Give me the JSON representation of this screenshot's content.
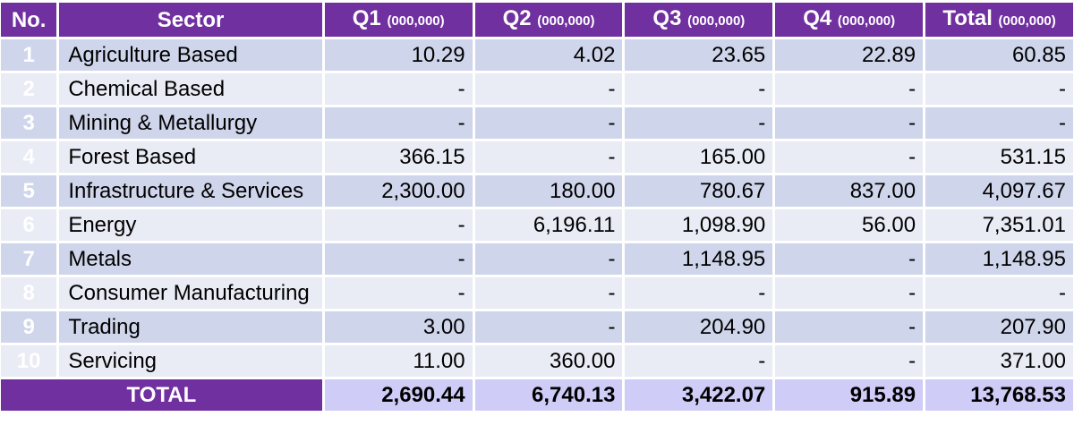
{
  "header": {
    "no": "No.",
    "sector": "Sector",
    "q1": "Q1",
    "q1_unit": "(000,000)",
    "q2": "Q2",
    "q2_unit": "(000,000)",
    "q3": "Q3",
    "q3_unit": "(000,000)",
    "q4": "Q4",
    "q4_unit": "(000,000)",
    "total": "Total",
    "total_unit": "(000,000)"
  },
  "rows": [
    {
      "no": "1",
      "sector": "Agriculture Based",
      "q1": "10.29",
      "q2": "4.02",
      "q3": "23.65",
      "q4": "22.89",
      "total": "60.85"
    },
    {
      "no": "2",
      "sector": "Chemical Based",
      "q1": "-",
      "q2": "-",
      "q3": "-",
      "q4": "-",
      "total": "-"
    },
    {
      "no": "3",
      "sector": "Mining & Metallurgy",
      "q1": "-",
      "q2": "-",
      "q3": "-",
      "q4": "-",
      "total": "-"
    },
    {
      "no": "4",
      "sector": "Forest Based",
      "q1": "366.15",
      "q2": "-",
      "q3": "165.00",
      "q4": "-",
      "total": "531.15"
    },
    {
      "no": "5",
      "sector": "Infrastructure & Services",
      "q1": "2,300.00",
      "q2": "180.00",
      "q3": "780.67",
      "q4": "837.00",
      "total": "4,097.67"
    },
    {
      "no": "6",
      "sector": "Energy",
      "q1": "-",
      "q2": "6,196.11",
      "q3": "1,098.90",
      "q4": "56.00",
      "total": "7,351.01"
    },
    {
      "no": "7",
      "sector": "Metals",
      "q1": "-",
      "q2": "-",
      "q3": "1,148.95",
      "q4": "-",
      "total": "1,148.95"
    },
    {
      "no": "8",
      "sector": "Consumer Manufacturing",
      "q1": "-",
      "q2": "-",
      "q3": "-",
      "q4": "-",
      "total": "-"
    },
    {
      "no": "9",
      "sector": "Trading",
      "q1": "3.00",
      "q2": "-",
      "q3": "204.90",
      "q4": "-",
      "total": "207.90"
    },
    {
      "no": "10",
      "sector": "Servicing",
      "q1": "11.00",
      "q2": "360.00",
      "q3": "-",
      "q4": "-",
      "total": "371.00"
    }
  ],
  "totals": {
    "label": "TOTAL",
    "q1": "2,690.44",
    "q2": "6,740.13",
    "q3": "3,422.07",
    "q4": "915.89",
    "total": "13,768.53"
  },
  "colors": {
    "header_bg": "#7030a0",
    "row_odd": "#cfd5ea",
    "row_even": "#e9ebf5",
    "total_values_bg": "#cfcdf7"
  }
}
